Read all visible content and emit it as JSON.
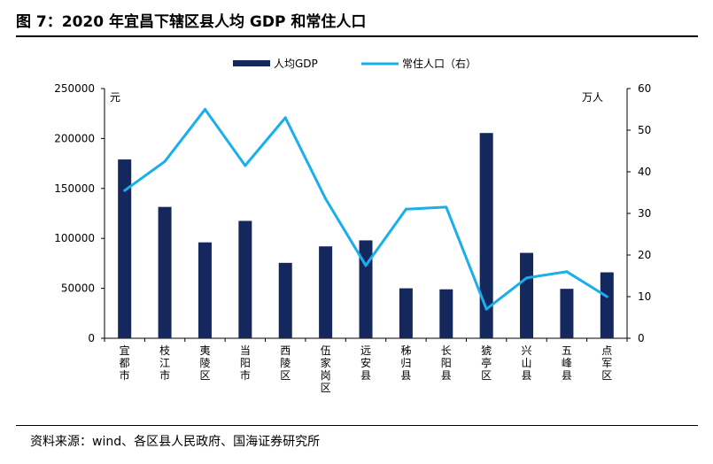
{
  "header": {
    "title": "图 7：2020 年宜昌下辖区县人均 GDP 和常住人口"
  },
  "footer": {
    "source": "资料来源：wind、各区县人民政府、国海证券研究所"
  },
  "colors": {
    "bar": "#14285e",
    "line": "#1aaeea"
  },
  "chart_data": {
    "type": "bar",
    "categories": [
      "宜都市",
      "枝江市",
      "夷陵区",
      "当阳市",
      "西陵区",
      "伍家岗区",
      "远安县",
      "秭归县",
      "长阳县",
      "猇亭区",
      "兴山县",
      "五峰县",
      "点军区"
    ],
    "series": [
      {
        "name": "人均GDP",
        "type": "bar",
        "axis": "left",
        "values": [
          179000,
          131500,
          96000,
          117500,
          75500,
          92000,
          98000,
          50000,
          49000,
          205500,
          85500,
          49500,
          66000
        ]
      },
      {
        "name": "常住人口（右）",
        "type": "line",
        "axis": "right",
        "values": [
          35.5,
          42.5,
          55,
          41.5,
          53,
          33.5,
          17.5,
          31,
          31.5,
          7,
          14.5,
          16,
          10
        ]
      }
    ],
    "left_axis": {
      "unit": "元",
      "ylim": [
        0,
        250000
      ],
      "ticks": [
        0,
        50000,
        100000,
        150000,
        200000,
        250000
      ]
    },
    "right_axis": {
      "unit": "万人",
      "ylim": [
        0,
        60
      ],
      "ticks": [
        0,
        10,
        20,
        30,
        40,
        50,
        60
      ]
    },
    "legend": "top-center",
    "grid": false
  }
}
